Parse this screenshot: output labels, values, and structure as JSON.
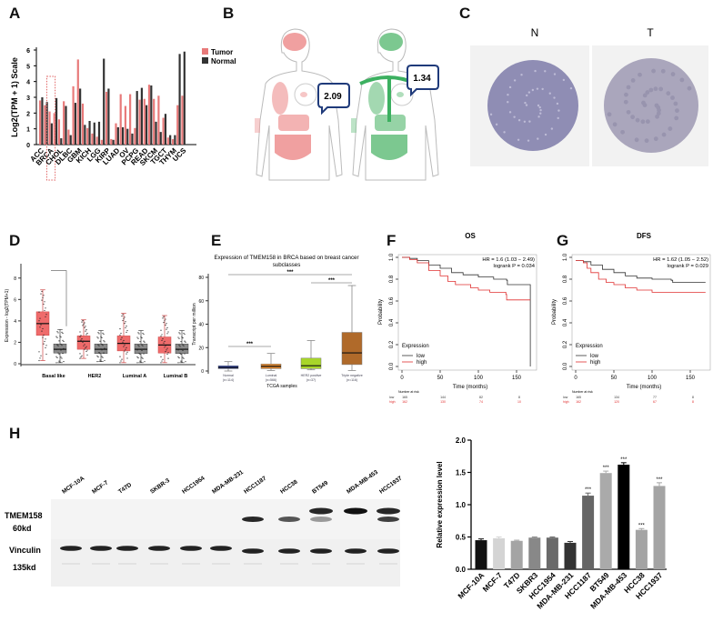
{
  "panel_labels": {
    "a": "A",
    "b": "B",
    "c": "C",
    "d": "D",
    "e": "E",
    "f": "F",
    "g": "G",
    "h": "H"
  },
  "colors": {
    "tumor": "#e87a7a",
    "normal": "#333333",
    "km_low": "#333333",
    "km_high": "#e03030",
    "bubble": "#1f3a7a",
    "body_tumor": "#f0a0a0",
    "body_normal": "#7cc890"
  },
  "chart_data": [
    {
      "id": "A",
      "type": "bar",
      "ylabel": "Log2(TPM + 1) Scale",
      "ylim": [
        0,
        6
      ],
      "yticks": [
        "0",
        "1",
        "2",
        "3",
        "4",
        "5",
        "6"
      ],
      "categories": [
        "ACC",
        "",
        "BRCA",
        "",
        "CHOL",
        "",
        "DLBC",
        "",
        "GBM",
        "",
        "KICH",
        "",
        "LGG",
        "",
        "KIRP",
        "",
        "LUAD",
        "",
        "OV",
        "",
        "PCPG",
        "",
        "READ",
        "",
        "SKCM",
        "",
        "TGCT",
        "",
        "THYM",
        "",
        "UCS",
        "",
        ""
      ],
      "highlight": "BRCA",
      "legend_position": "top-right",
      "series": [
        {
          "name": "Tumor",
          "values": [
            2.8,
            2.5,
            2.1,
            2.0,
            1.6,
            2.75,
            0.95,
            3.7,
            5.4,
            2.6,
            1.05,
            0.7,
            0.5,
            0.3,
            3.35,
            0.35,
            1.35,
            3.2,
            2.45,
            3.2,
            1.05,
            2.85,
            2.9,
            3.8,
            2.9,
            3.1,
            1.7,
            0.45,
            0.35,
            2.5,
            3.1,
            0,
            0
          ]
        },
        {
          "name": "Normal",
          "values": [
            3.0,
            2.7,
            1.35,
            2.95,
            0.4,
            2.45,
            0.6,
            2.65,
            3.55,
            1.25,
            1.5,
            1.4,
            1.45,
            5.45,
            3.55,
            0.3,
            1.1,
            1.1,
            1.0,
            0.7,
            3.4,
            3.6,
            2.5,
            3.75,
            1.45,
            0.8,
            1.95,
            0.6,
            0.6,
            5.75,
            5.9,
            0,
            0
          ]
        }
      ]
    },
    {
      "id": "D",
      "type": "box",
      "ylabel": "Expression - log2(TPM+1)",
      "ylim": [
        0,
        9
      ],
      "yticks": [
        "0",
        "2",
        "4",
        "6",
        "8"
      ],
      "categories": [
        "Basal like",
        "HER2",
        "Luminal A",
        "Luminal B"
      ],
      "significance": [
        "Basal like"
      ],
      "tumor": [
        [
          0.3,
          2.65,
          3.75,
          4.85,
          6.9
        ],
        [
          0.5,
          1.35,
          2.1,
          2.6,
          4.1
        ],
        [
          0.1,
          1.2,
          1.9,
          2.6,
          4.7
        ],
        [
          0.1,
          1.0,
          1.75,
          2.5,
          4.5
        ]
      ],
      "normal": [
        [
          0.1,
          1.0,
          1.35,
          1.85,
          3.2
        ],
        [
          0.2,
          0.95,
          1.35,
          1.85,
          3.1
        ],
        [
          0.1,
          0.95,
          1.35,
          1.85,
          3.1
        ],
        [
          0.1,
          0.95,
          1.35,
          1.85,
          3.1
        ]
      ]
    },
    {
      "id": "E",
      "type": "box",
      "title": "Expression of TMEM158 in BRCA based on breast cancer subclasses",
      "title_lines": [
        "Expression of TMEM158 in BRCA based on breast cancer",
        "subclasses"
      ],
      "xlabel": "TCGA samples",
      "ylabel": "Transcript per million",
      "ylim": [
        0,
        80
      ],
      "yticks": [
        "0",
        "20",
        "40",
        "60",
        "80"
      ],
      "categories": [
        "Normal",
        "Luminal",
        "HER2 positive",
        "Triple negative"
      ],
      "counts": [
        "(n=114)",
        "(n=566)",
        "(n=37)",
        "(n=116)"
      ],
      "box_colors": [
        "#2b3fa8",
        "#e68a2e",
        "#a8d62a",
        "#b06a2a"
      ],
      "boxes": [
        [
          0,
          2,
          3,
          4.5,
          8
        ],
        [
          0.5,
          2,
          4,
          6,
          15
        ],
        [
          1,
          2,
          4.5,
          11,
          26
        ],
        [
          0.5,
          5.5,
          15.5,
          33,
          73
        ]
      ],
      "significance": [
        {
          "from": 0,
          "to": 1,
          "label": "***"
        },
        {
          "from": 2,
          "to": 3,
          "label": "***"
        },
        {
          "from": 0,
          "to": 3,
          "label": "***"
        }
      ]
    },
    {
      "id": "F",
      "type": "line",
      "title": "OS",
      "xlabel": "Time (months)",
      "ylabel": "Probability",
      "xlim": [
        0,
        175
      ],
      "ylim": [
        0,
        1
      ],
      "xticks": [
        "0",
        "50",
        "100",
        "150"
      ],
      "yticks": [
        "0.0",
        "0.2",
        "0.4",
        "0.6",
        "0.8",
        "1.0"
      ],
      "hr": "HR = 1.6 (1.03 − 2.49)",
      "logrank": "logrank P = 0.034",
      "legend_title": "Expression",
      "series": [
        {
          "name": "low",
          "points": [
            [
              0,
              1
            ],
            [
              10,
              0.99
            ],
            [
              20,
              0.97
            ],
            [
              35,
              0.93
            ],
            [
              50,
              0.9
            ],
            [
              65,
              0.86
            ],
            [
              80,
              0.84
            ],
            [
              100,
              0.82
            ],
            [
              120,
              0.8
            ],
            [
              137,
              0.79
            ],
            [
              138,
              0.75
            ],
            [
              168,
              0.75
            ],
            [
              168,
              0.0
            ]
          ]
        },
        {
          "name": "high",
          "points": [
            [
              0,
              1
            ],
            [
              10,
              0.98
            ],
            [
              20,
              0.95
            ],
            [
              35,
              0.88
            ],
            [
              50,
              0.83
            ],
            [
              60,
              0.78
            ],
            [
              70,
              0.75
            ],
            [
              90,
              0.72
            ],
            [
              100,
              0.7
            ],
            [
              115,
              0.68
            ],
            [
              136,
              0.66
            ],
            [
              137,
              0.61
            ],
            [
              168,
              0.61
            ]
          ]
        }
      ],
      "risk_title": "Number at risk",
      "risk": [
        {
          "label": "low",
          "values": [
            "165",
            "144",
            "82",
            "8"
          ]
        },
        {
          "label": "high",
          "values": [
            "162",
            "130",
            "74",
            "10"
          ]
        }
      ]
    },
    {
      "id": "G",
      "type": "line",
      "title": "DFS",
      "xlabel": "Time (months)",
      "ylabel": "Probability",
      "xlim": [
        0,
        175
      ],
      "ylim": [
        0,
        1
      ],
      "xticks": [
        "0",
        "50",
        "100",
        "150"
      ],
      "yticks": [
        "0.0",
        "0.2",
        "0.4",
        "0.6",
        "0.8",
        "1.0"
      ],
      "hr": "HR = 1.62 (1.05 − 2.52)",
      "logrank": "logrank P = 0.029",
      "legend_title": "Expression",
      "series": [
        {
          "name": "low",
          "points": [
            [
              0,
              0.97
            ],
            [
              10,
              0.96
            ],
            [
              20,
              0.93
            ],
            [
              35,
              0.89
            ],
            [
              50,
              0.86
            ],
            [
              65,
              0.83
            ],
            [
              80,
              0.81
            ],
            [
              100,
              0.8
            ],
            [
              125,
              0.79
            ],
            [
              127,
              0.77
            ],
            [
              170,
              0.77
            ]
          ]
        },
        {
          "name": "high",
          "points": [
            [
              0,
              0.97
            ],
            [
              10,
              0.95
            ],
            [
              15,
              0.9
            ],
            [
              20,
              0.86
            ],
            [
              30,
              0.8
            ],
            [
              40,
              0.77
            ],
            [
              50,
              0.75
            ],
            [
              65,
              0.72
            ],
            [
              80,
              0.7
            ],
            [
              100,
              0.68
            ],
            [
              170,
              0.68
            ]
          ]
        }
      ],
      "risk_title": "Number at risk",
      "risk": [
        {
          "label": "low",
          "values": [
            "165",
            "134",
            "77",
            "8"
          ]
        },
        {
          "label": "high",
          "values": [
            "162",
            "120",
            "67",
            "8"
          ]
        }
      ]
    },
    {
      "id": "H-bar",
      "type": "bar",
      "ylabel": "Relative expression level",
      "ylim": [
        0,
        2.0
      ],
      "yticks": [
        "0.0",
        "0.5",
        "1.0",
        "1.5",
        "2.0"
      ],
      "categories": [
        "MCF-10A",
        "MCF-7",
        "T47D",
        "SKBR3",
        "HCC1954",
        "MDA-MB-231",
        "HCC1187",
        "BT549",
        "MDA-MB-453",
        "HCC38",
        "HCC1937"
      ],
      "values": [
        0.45,
        0.48,
        0.44,
        0.49,
        0.49,
        0.41,
        1.14,
        1.49,
        1.62,
        0.61,
        1.29
      ],
      "errors": [
        0.02,
        0.02,
        0.01,
        0.01,
        0.01,
        0.02,
        0.04,
        0.03,
        0.03,
        0.02,
        0.05
      ],
      "bar_colors": [
        "#111111",
        "#d4d4d4",
        "#a4a4a4",
        "#888888",
        "#6a6a6a",
        "#333333",
        "#666666",
        "#aaaaaa",
        "#000000",
        "#a4a4a4",
        "#a4a4a4"
      ],
      "annotations": [
        "",
        "",
        "",
        "",
        "",
        "",
        "***",
        "***",
        "***",
        "***",
        "***"
      ]
    }
  ],
  "panel_b": {
    "tumor_value": "2.09",
    "normal_value": "1.34"
  },
  "panel_c": {
    "normal_label": "N",
    "tumor_label": "T"
  },
  "panel_h_blot": {
    "lanes": [
      "MCF-10A",
      "MCF-7",
      "T47D",
      "SKBR-3",
      "HCC1954",
      "MDA-MB-231",
      "HCC1187",
      "HCC38",
      "BT549",
      "MDA-MB-453",
      "HCC1937"
    ],
    "protein1": "TMEM158",
    "protein1_size": "60kd",
    "protein2": "Vinculin",
    "protein2_size": "135kd",
    "tmem158_upper_band": [
      0,
      0,
      0,
      0,
      0,
      0,
      0,
      0,
      0.9,
      1.0,
      0.9
    ],
    "tmem158_lower_band": [
      0,
      0,
      0,
      0,
      0,
      0,
      0.9,
      0.7,
      0.4,
      0,
      0.8
    ]
  }
}
